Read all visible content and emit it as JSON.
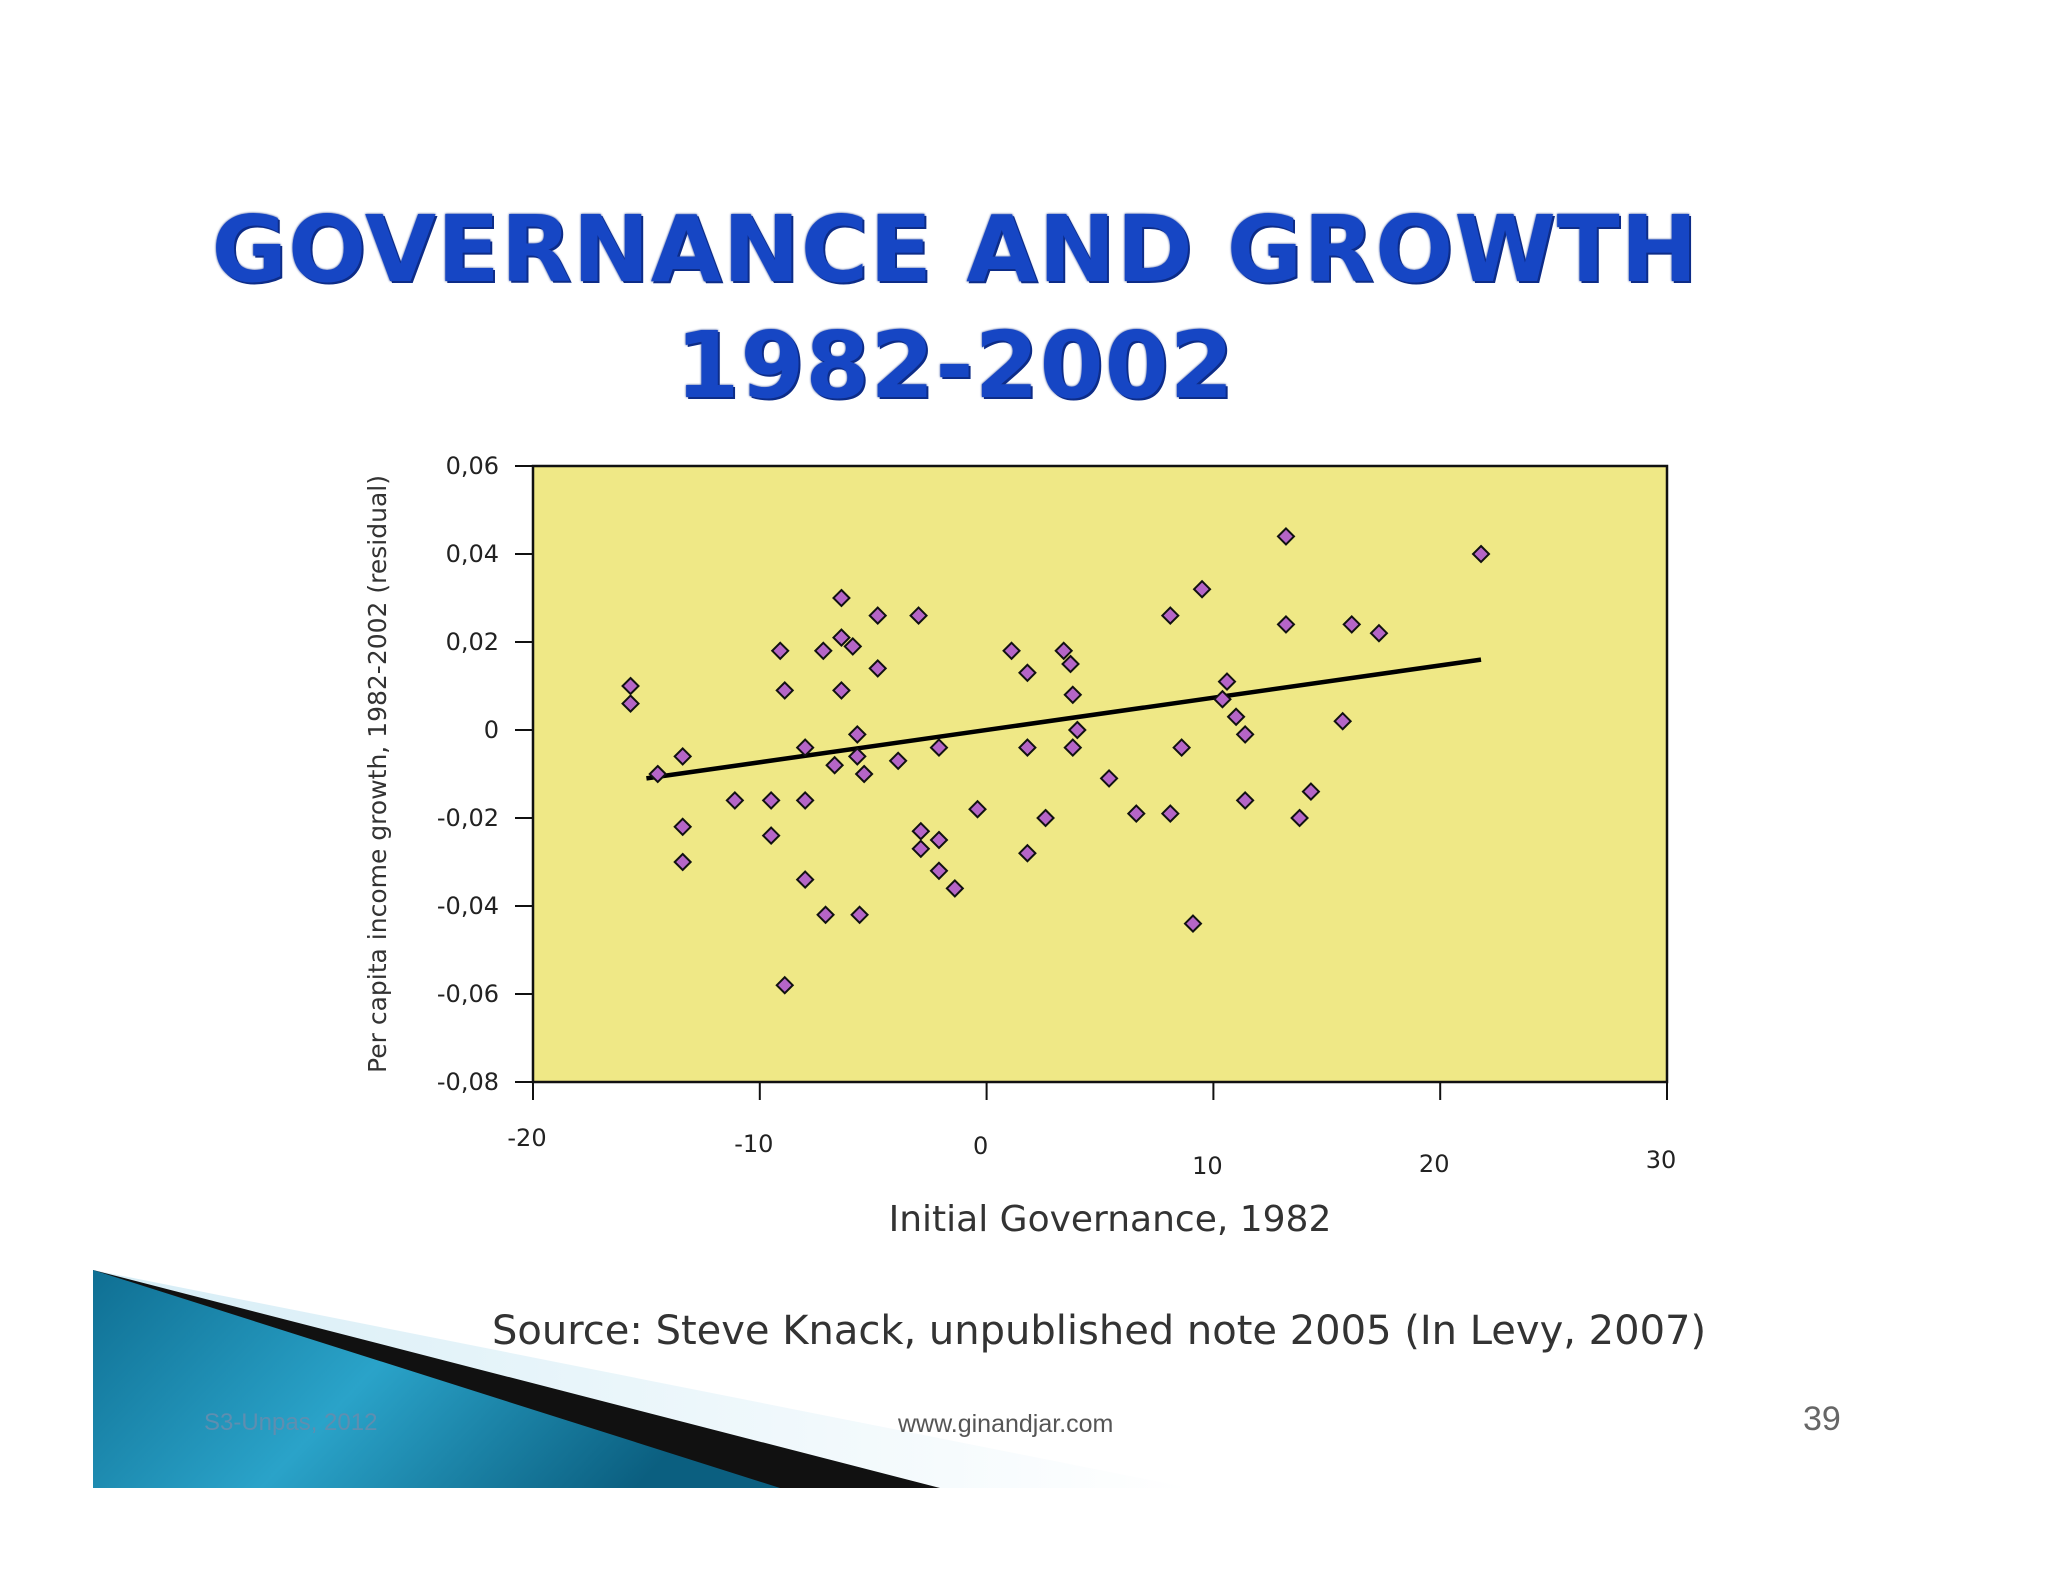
{
  "slide": {
    "title_line1": "GOVERNANCE AND GROWTH",
    "title_line2": "1982-2002",
    "source": "Source: Steve Knack, unpublished note 2005 (In Levy, 2007)",
    "footer_left": "S3-Unpas, 2012",
    "footer_center": "www.ginandjar.com",
    "page_number": "39"
  },
  "colors": {
    "title": "#1646c4",
    "plot_background": "#efe886",
    "marker_fill": "#b565c7",
    "trend_line": "#000000",
    "decor_teal": "#1a8ab0"
  },
  "chart_data": {
    "type": "scatter",
    "title": "",
    "xlabel": "Initial Governance, 1982",
    "ylabel": "Per capita income growth, 1982-2002 (residual)",
    "xlim": [
      -20,
      30
    ],
    "ylim": [
      -0.08,
      0.06
    ],
    "x_tick_labels": [
      "-20",
      "-10",
      "0",
      "10",
      "20",
      "30"
    ],
    "y_tick_labels": [
      "0,06",
      "0,04",
      "0,02",
      "0",
      "-0,02",
      "-0,04",
      "-0,06",
      "-0,08"
    ],
    "grid": false,
    "legend": "none",
    "marker": "diamond",
    "points": [
      [
        -15.7,
        0.01
      ],
      [
        -15.7,
        0.006
      ],
      [
        -14.5,
        -0.01
      ],
      [
        -13.4,
        -0.006
      ],
      [
        -13.4,
        -0.022
      ],
      [
        -13.4,
        -0.03
      ],
      [
        -11.1,
        -0.016
      ],
      [
        -9.5,
        -0.016
      ],
      [
        -9.5,
        -0.024
      ],
      [
        -9.1,
        0.018
      ],
      [
        -8.9,
        0.009
      ],
      [
        -8.9,
        -0.058
      ],
      [
        -8.0,
        -0.004
      ],
      [
        -8.0,
        -0.016
      ],
      [
        -8.0,
        -0.034
      ],
      [
        -7.2,
        0.018
      ],
      [
        -7.1,
        -0.042
      ],
      [
        -6.7,
        -0.008
      ],
      [
        -6.4,
        0.03
      ],
      [
        -6.4,
        0.021
      ],
      [
        -6.4,
        0.009
      ],
      [
        -5.9,
        0.019
      ],
      [
        -5.7,
        -0.001
      ],
      [
        -5.7,
        -0.006
      ],
      [
        -5.6,
        -0.042
      ],
      [
        -5.4,
        -0.01
      ],
      [
        -4.8,
        0.026
      ],
      [
        -4.8,
        0.014
      ],
      [
        -3.9,
        -0.007
      ],
      [
        -3.0,
        0.026
      ],
      [
        -2.9,
        -0.023
      ],
      [
        -2.9,
        -0.027
      ],
      [
        -2.1,
        -0.004
      ],
      [
        -2.1,
        -0.025
      ],
      [
        -2.1,
        -0.032
      ],
      [
        -1.4,
        -0.036
      ],
      [
        -0.4,
        -0.018
      ],
      [
        1.1,
        0.018
      ],
      [
        1.8,
        0.013
      ],
      [
        1.8,
        -0.004
      ],
      [
        1.8,
        -0.028
      ],
      [
        2.6,
        -0.02
      ],
      [
        3.4,
        0.018
      ],
      [
        3.7,
        0.015
      ],
      [
        3.8,
        0.008
      ],
      [
        3.8,
        -0.004
      ],
      [
        4.0,
        0.0
      ],
      [
        5.4,
        -0.011
      ],
      [
        6.6,
        -0.019
      ],
      [
        8.1,
        0.026
      ],
      [
        8.1,
        -0.019
      ],
      [
        8.6,
        -0.004
      ],
      [
        9.1,
        -0.044
      ],
      [
        9.5,
        0.032
      ],
      [
        10.4,
        0.007
      ],
      [
        10.6,
        0.011
      ],
      [
        11.0,
        0.003
      ],
      [
        11.4,
        -0.001
      ],
      [
        11.4,
        -0.016
      ],
      [
        13.2,
        0.044
      ],
      [
        13.2,
        0.024
      ],
      [
        13.8,
        -0.02
      ],
      [
        14.3,
        -0.014
      ],
      [
        15.7,
        0.002
      ],
      [
        16.1,
        0.024
      ],
      [
        17.3,
        0.022
      ],
      [
        21.8,
        0.04
      ]
    ],
    "trend_line": {
      "x": [
        -15.0,
        21.8
      ],
      "y": [
        -0.011,
        0.016
      ]
    }
  }
}
